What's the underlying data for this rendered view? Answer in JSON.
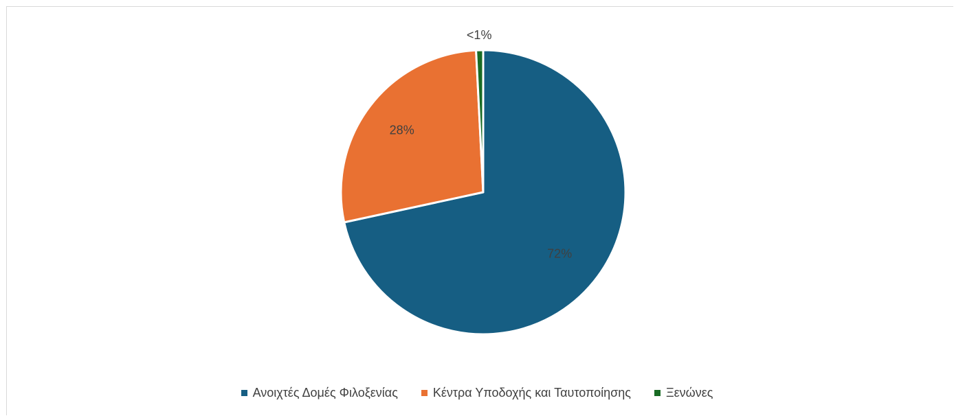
{
  "chart_data": {
    "type": "pie",
    "title": "",
    "categories": [
      "Ανοιχτές Δομές Φιλοξενίας",
      "Κέντρα Υποδοχής και Ταυτοποίησης",
      "Ξενώνες"
    ],
    "values": [
      71.6,
      27.6,
      0.8
    ],
    "data_labels": [
      "72%",
      "28%",
      "<1%"
    ],
    "colors": [
      "#165e83",
      "#e97132",
      "#196b24"
    ],
    "start_angle_deg": 0,
    "direction": "clockwise",
    "legend_position": "bottom"
  }
}
